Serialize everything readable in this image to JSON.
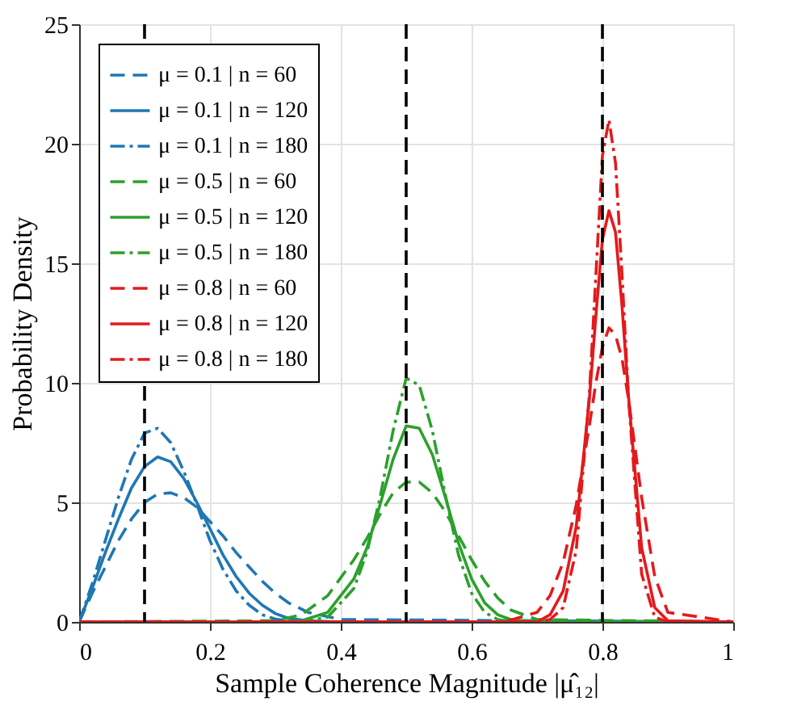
{
  "chart_data": {
    "type": "line",
    "xlabel": "Sample Coherence Magnitude |μ̂₁₂|",
    "ylabel": "Probability Density",
    "xlim": [
      0,
      1
    ],
    "ylim": [
      0,
      25
    ],
    "xticks": [
      0,
      0.2,
      0.4,
      0.6,
      0.8,
      1
    ],
    "yticks": [
      0,
      5,
      10,
      15,
      20,
      25
    ],
    "grid": true,
    "legend": "top left",
    "marker": "none",
    "ref_lines": [
      {
        "axis": "x",
        "value": 0.1,
        "color": "#000000",
        "line_style": "dashed"
      },
      {
        "axis": "x",
        "value": 0.5,
        "color": "#000000",
        "line_style": "dashed"
      },
      {
        "axis": "x",
        "value": 0.8,
        "color": "#000000",
        "line_style": "dashed"
      }
    ],
    "series": [
      {
        "name": "μ = 0.1 | n = 60",
        "color": "#1f77b4",
        "line_style": "dashed",
        "x": [
          0,
          0.02,
          0.04,
          0.06,
          0.08,
          0.1,
          0.12,
          0.14,
          0.16,
          0.18,
          0.2,
          0.22,
          0.24,
          0.26,
          0.28,
          0.3,
          0.32,
          0.35,
          0.4,
          1
        ],
        "values": [
          0,
          1.2,
          2.3,
          3.4,
          4.3,
          5.0,
          5.35,
          5.4,
          5.2,
          4.8,
          4.2,
          3.6,
          2.9,
          2.3,
          1.7,
          1.2,
          0.8,
          0.4,
          0.1,
          0
        ]
      },
      {
        "name": "μ = 0.1 | n = 120",
        "color": "#1f77b4",
        "line_style": "solid",
        "x": [
          0,
          0.02,
          0.04,
          0.06,
          0.08,
          0.1,
          0.12,
          0.14,
          0.16,
          0.18,
          0.2,
          0.22,
          0.24,
          0.26,
          0.28,
          0.3,
          0.32,
          0.35,
          0.4,
          1
        ],
        "values": [
          0,
          1.4,
          2.9,
          4.3,
          5.6,
          6.5,
          6.9,
          6.7,
          6.0,
          5.0,
          3.9,
          2.8,
          1.9,
          1.2,
          0.7,
          0.35,
          0.15,
          0.05,
          0,
          0
        ]
      },
      {
        "name": "μ = 0.1 | n = 180",
        "color": "#1f77b4",
        "line_style": "dashdot",
        "x": [
          0,
          0.02,
          0.04,
          0.06,
          0.08,
          0.1,
          0.12,
          0.14,
          0.16,
          0.18,
          0.2,
          0.22,
          0.24,
          0.26,
          0.28,
          0.3,
          0.32,
          0.35,
          0.4,
          1
        ],
        "values": [
          0,
          1.6,
          3.4,
          5.2,
          6.8,
          7.9,
          8.1,
          7.5,
          6.3,
          4.9,
          3.4,
          2.2,
          1.3,
          0.7,
          0.3,
          0.12,
          0.05,
          0,
          0,
          0
        ]
      },
      {
        "name": "μ = 0.5 | n = 60",
        "color": "#2ca02c",
        "line_style": "dashed",
        "x": [
          0,
          0.3,
          0.34,
          0.38,
          0.42,
          0.44,
          0.46,
          0.48,
          0.5,
          0.52,
          0.54,
          0.56,
          0.58,
          0.6,
          0.62,
          0.64,
          0.66,
          0.7,
          1
        ],
        "values": [
          0,
          0.05,
          0.3,
          1.1,
          2.6,
          3.5,
          4.5,
          5.4,
          5.85,
          5.85,
          5.4,
          4.6,
          3.6,
          2.6,
          1.7,
          1.0,
          0.5,
          0.1,
          0
        ]
      },
      {
        "name": "μ = 0.5 | n = 120",
        "color": "#2ca02c",
        "line_style": "solid",
        "x": [
          0,
          0.3,
          0.34,
          0.38,
          0.42,
          0.44,
          0.46,
          0.48,
          0.5,
          0.52,
          0.54,
          0.56,
          0.58,
          0.6,
          0.62,
          0.64,
          0.66,
          0.7,
          1
        ],
        "values": [
          0,
          0,
          0.05,
          0.4,
          1.8,
          3.1,
          4.9,
          6.8,
          8.2,
          8.1,
          7.0,
          5.2,
          3.3,
          1.8,
          0.8,
          0.3,
          0.1,
          0,
          0
        ]
      },
      {
        "name": "μ = 0.5 | n = 180",
        "color": "#2ca02c",
        "line_style": "dashdot",
        "x": [
          0,
          0.3,
          0.34,
          0.38,
          0.42,
          0.44,
          0.46,
          0.48,
          0.5,
          0.52,
          0.54,
          0.56,
          0.58,
          0.6,
          0.62,
          0.64,
          0.66,
          0.7,
          1
        ],
        "values": [
          0,
          0,
          0,
          0.2,
          1.4,
          2.9,
          5.2,
          8.0,
          10.2,
          9.9,
          8.0,
          5.3,
          2.8,
          1.2,
          0.4,
          0.1,
          0,
          0,
          0
        ]
      },
      {
        "name": "μ = 0.8 | n = 60",
        "color": "#e31a1c",
        "line_style": "dashed",
        "x": [
          0,
          0.65,
          0.7,
          0.72,
          0.74,
          0.76,
          0.78,
          0.79,
          0.8,
          0.81,
          0.82,
          0.83,
          0.84,
          0.86,
          0.88,
          0.9,
          1
        ],
        "values": [
          0,
          0,
          0.4,
          1.1,
          2.5,
          4.9,
          8.2,
          10.0,
          11.5,
          12.3,
          12.0,
          11.0,
          9.3,
          5.2,
          1.9,
          0.4,
          0
        ]
      },
      {
        "name": "μ = 0.8 | n = 120",
        "color": "#e31a1c",
        "line_style": "solid",
        "x": [
          0,
          0.65,
          0.7,
          0.72,
          0.74,
          0.76,
          0.78,
          0.79,
          0.8,
          0.81,
          0.82,
          0.83,
          0.84,
          0.86,
          0.88,
          0.9,
          1
        ],
        "values": [
          0,
          0,
          0,
          0.3,
          1.3,
          4.0,
          9.3,
          12.8,
          16.0,
          17.2,
          16.3,
          13.2,
          9.4,
          3.1,
          0.6,
          0.05,
          0
        ]
      },
      {
        "name": "μ = 0.8 | n = 180",
        "color": "#e31a1c",
        "line_style": "dashdot",
        "x": [
          0,
          0.65,
          0.7,
          0.72,
          0.74,
          0.76,
          0.78,
          0.79,
          0.8,
          0.81,
          0.82,
          0.83,
          0.84,
          0.86,
          0.88,
          0.9,
          1
        ],
        "values": [
          0,
          0,
          0,
          0.1,
          0.6,
          3.0,
          9.5,
          14.5,
          19.5,
          21.0,
          19.2,
          14.5,
          9.3,
          2.0,
          0.2,
          0,
          0
        ]
      }
    ]
  }
}
